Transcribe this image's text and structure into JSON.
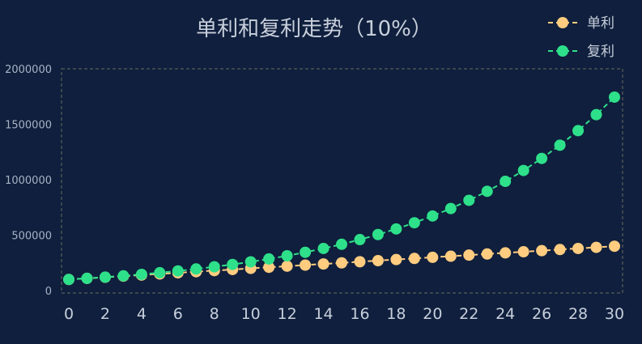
{
  "chart_data": {
    "type": "line",
    "title": "单利和复利走势（10%）",
    "x": [
      0,
      1,
      2,
      3,
      4,
      5,
      6,
      7,
      8,
      9,
      10,
      11,
      12,
      13,
      14,
      15,
      16,
      17,
      18,
      19,
      20,
      21,
      22,
      23,
      24,
      25,
      26,
      27,
      28,
      29,
      30
    ],
    "xticks": [
      0,
      2,
      4,
      6,
      8,
      10,
      12,
      14,
      16,
      18,
      20,
      22,
      24,
      26,
      28,
      30
    ],
    "xlim": [
      0,
      30
    ],
    "ylim": [
      0,
      2000000
    ],
    "yticks": [
      0,
      500000,
      1000000,
      1500000,
      2000000
    ],
    "legend": "top-right",
    "grid": false,
    "series": [
      {
        "name": "单利",
        "color": "#ffcc80",
        "values": [
          100000,
          110000,
          120000,
          130000,
          140000,
          150000,
          160000,
          170000,
          180000,
          190000,
          200000,
          210000,
          220000,
          230000,
          240000,
          250000,
          260000,
          270000,
          280000,
          290000,
          300000,
          310000,
          320000,
          330000,
          340000,
          350000,
          360000,
          370000,
          380000,
          390000,
          400000
        ]
      },
      {
        "name": "复利",
        "color": "#2ee08a",
        "values": [
          100000,
          110000,
          121000,
          133100,
          146410,
          161051,
          177156,
          194872,
          214359,
          235795,
          259374,
          285312,
          313843,
          345227,
          379750,
          417725,
          459497,
          505447,
          555992,
          611591,
          672750,
          740025,
          814027,
          895430,
          984973,
          1083471,
          1191818,
          1310999,
          1442099,
          1586309,
          1744940
        ]
      }
    ]
  }
}
